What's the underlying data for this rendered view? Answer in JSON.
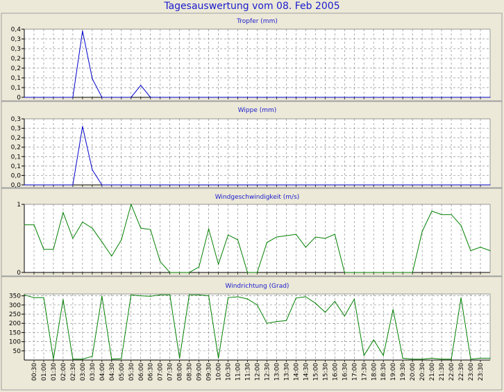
{
  "title": "Tagesauswertung vom 08. Feb 2005",
  "time_labels": [
    "00:30",
    "01:00",
    "01:30",
    "02:00",
    "02:30",
    "03:00",
    "03:30",
    "04:00",
    "04:30",
    "05:00",
    "05:30",
    "06:00",
    "06:30",
    "07:00",
    "07:30",
    "08:00",
    "08:30",
    "09:00",
    "09:30",
    "10:00",
    "10:30",
    "11:00",
    "11:30",
    "12:00",
    "12:30",
    "13:00",
    "13:30",
    "14:00",
    "14:30",
    "15:00",
    "15:30",
    "16:00",
    "16:30",
    "17:00",
    "17:30",
    "18:00",
    "18:30",
    "19:00",
    "19:30",
    "20:00",
    "20:30",
    "21:00",
    "21:30",
    "22:00",
    "22:30",
    "23:00",
    "23:30"
  ],
  "colors": {
    "background": "#ece9d8",
    "plot_background": "#ffffff",
    "grid": "#8c8c8c",
    "title": "#1a1acc",
    "rain": "#0000cc",
    "wind": "#008000"
  },
  "chart_data": [
    {
      "type": "line",
      "title": "Tropfer (mm)",
      "ylim": [
        0,
        0.4
      ],
      "yticks": [
        "0",
        "0,1",
        "0,1",
        "0,2",
        "0,2",
        "0,3",
        "0,3",
        "0,4"
      ],
      "grid": true,
      "series": [
        {
          "values": [
            0,
            0,
            0,
            0,
            0,
            0,
            0.39,
            0.11,
            0,
            0,
            0,
            0,
            0.07,
            0,
            0,
            0,
            0,
            0,
            0,
            0,
            0,
            0,
            0,
            0,
            0,
            0,
            0,
            0,
            0,
            0,
            0,
            0,
            0,
            0,
            0,
            0,
            0,
            0,
            0,
            0,
            0,
            0,
            0,
            0,
            0,
            0,
            0,
            0,
            0
          ]
        }
      ]
    },
    {
      "type": "line",
      "title": "Wippe (mm)",
      "ylim": [
        0,
        0.35
      ],
      "yticks": [
        "0,0",
        "0,0",
        "0,1",
        "0,1",
        "0,2",
        "0,2",
        "0,3",
        "0,3"
      ],
      "grid": true,
      "series": [
        {
          "values": [
            0,
            0,
            0,
            0,
            0,
            0,
            0.31,
            0.08,
            0,
            0,
            0,
            0,
            0,
            0,
            0,
            0,
            0,
            0,
            0,
            0,
            0,
            0,
            0,
            0,
            0,
            0,
            0,
            0,
            0,
            0,
            0,
            0,
            0,
            0,
            0,
            0,
            0,
            0,
            0,
            0,
            0,
            0,
            0,
            0,
            0,
            0,
            0,
            0,
            0
          ]
        }
      ]
    },
    {
      "type": "line",
      "title": "Windgeschwindigkeit (m/s)",
      "ylim": [
        0,
        1
      ],
      "yticks": [
        "0",
        "1"
      ],
      "grid": true,
      "series": [
        {
          "values": [
            0.7,
            0.7,
            0.34,
            0.34,
            0.88,
            0.5,
            0.74,
            0.65,
            0.45,
            0.24,
            0.48,
            1.0,
            0.65,
            0.63,
            0.16,
            0,
            0,
            0,
            0.08,
            0.64,
            0.12,
            0.55,
            0.48,
            0,
            0,
            0.44,
            0.52,
            0.54,
            0.56,
            0.37,
            0.52,
            0.5,
            0.56,
            0,
            0,
            0,
            0,
            0,
            0,
            0,
            0,
            0.6,
            0.9,
            0.85,
            0.85,
            0.69,
            0.32,
            0.37,
            0.32
          ]
        }
      ]
    },
    {
      "type": "line",
      "title": "Windrichtung (Grad)",
      "ylim": [
        0,
        360
      ],
      "yticks": [
        "50",
        "100",
        "150",
        "200",
        "250",
        "300",
        "350"
      ],
      "grid": true,
      "series": [
        {
          "values": [
            355,
            340,
            340,
            5,
            330,
            5,
            5,
            20,
            348,
            5,
            8,
            355,
            350,
            348,
            355,
            355,
            10,
            355,
            355,
            350,
            10,
            340,
            345,
            333,
            300,
            200,
            210,
            215,
            338,
            345,
            310,
            260,
            320,
            240,
            332,
            25,
            110,
            25,
            275,
            10,
            5,
            5,
            10,
            5,
            5,
            340,
            5,
            10,
            10
          ]
        }
      ]
    }
  ]
}
